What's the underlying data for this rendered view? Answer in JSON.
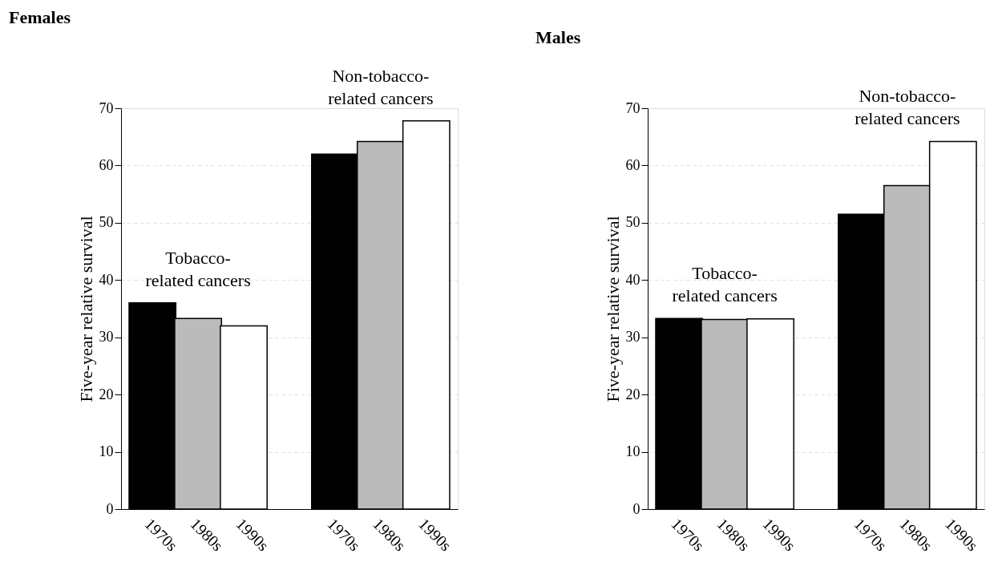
{
  "chart_data": [
    {
      "type": "bar",
      "title": "Females",
      "ylabel": "Five-year relative survival",
      "categories": [
        "1970s",
        "1980s",
        "1990s",
        "1970s",
        "1980s",
        "1990s"
      ],
      "values": [
        36,
        33.3,
        32,
        62,
        64.2,
        67.8
      ],
      "colors": [
        "#000000",
        "#bbbbbb",
        "#ffffff",
        "#000000",
        "#bbbbbb",
        "#ffffff"
      ],
      "annotations": [
        "Tobacco-\nrelated cancers",
        "Non-tobacco-\nrelated cancers"
      ],
      "ylim": [
        0,
        70
      ],
      "yticks": [
        0,
        10,
        20,
        30,
        40,
        50,
        60,
        70
      ],
      "grid": "y"
    },
    {
      "type": "bar",
      "title": "Males",
      "ylabel": "Five-year relative survival",
      "categories": [
        "1970s",
        "1980s",
        "1990s",
        "1970s",
        "1980s",
        "1990s"
      ],
      "values": [
        33.3,
        33.1,
        33.2,
        51.5,
        56.5,
        64.2
      ],
      "colors": [
        "#000000",
        "#bbbbbb",
        "#ffffff",
        "#000000",
        "#bbbbbb",
        "#ffffff"
      ],
      "annotations": [
        "Tobacco-\nrelated cancers",
        "Non-tobacco-\nrelated cancers"
      ],
      "ylim": [
        0,
        70
      ],
      "yticks": [
        0,
        10,
        20,
        30,
        40,
        50,
        60,
        70
      ],
      "grid": "y"
    }
  ]
}
